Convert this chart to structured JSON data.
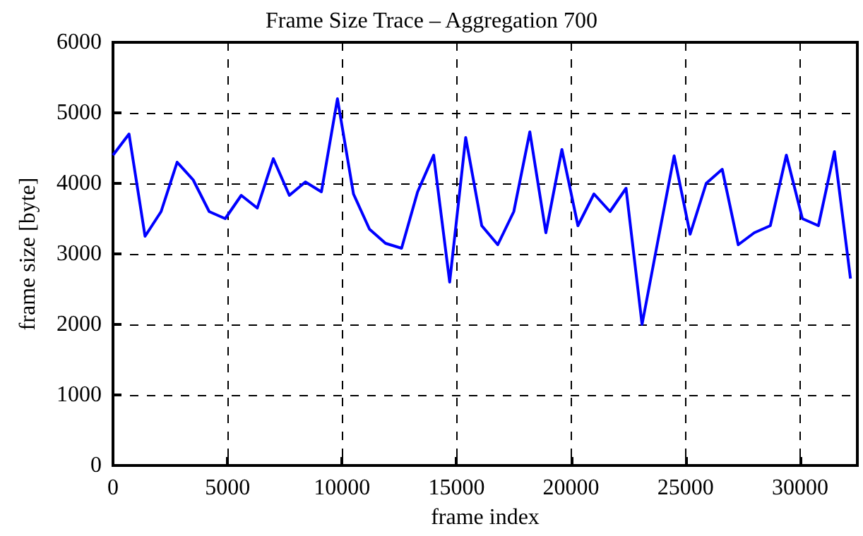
{
  "chart_data": {
    "type": "line",
    "title": "Frame Size Trace – Aggregation 700",
    "xlabel": "frame index",
    "ylabel": "frame size [byte]",
    "x": [
      0,
      700,
      1400,
      2100,
      2800,
      3500,
      4200,
      4900,
      5600,
      6300,
      7000,
      7700,
      8400,
      9100,
      9800,
      10500,
      11200,
      11900,
      12600,
      13300,
      14000,
      14700,
      15400,
      16100,
      16800,
      17500,
      18200,
      18900,
      19600,
      20300,
      21000,
      21700,
      22400,
      23100,
      23800,
      24500,
      25200,
      25900,
      26600,
      27300,
      28000,
      28700,
      29400,
      30100,
      30800,
      31500,
      32200
    ],
    "series": [
      {
        "color": "#0000ff",
        "values": [
          4400,
          4700,
          3250,
          3600,
          4300,
          4050,
          3600,
          3500,
          3830,
          3650,
          4350,
          3830,
          4020,
          3880,
          5200,
          3850,
          3350,
          3150,
          3080,
          3880,
          4400,
          2600,
          4650,
          3400,
          3130,
          3600,
          4730,
          3300,
          4480,
          3400,
          3850,
          3600,
          3930,
          2000,
          3200,
          4390,
          3280,
          4000,
          4200,
          3130,
          3300,
          3400,
          4400,
          3500,
          3400,
          4450,
          2650
        ]
      }
    ],
    "xlim": [
      0,
      32500
    ],
    "xticks": [
      0,
      5000,
      10000,
      15000,
      20000,
      25000,
      30000
    ],
    "ylim": [
      0,
      6000
    ],
    "yticks": [
      0,
      1000,
      2000,
      3000,
      4000,
      5000,
      6000
    ],
    "grid": true,
    "marker": "none",
    "line_style": "solid"
  }
}
